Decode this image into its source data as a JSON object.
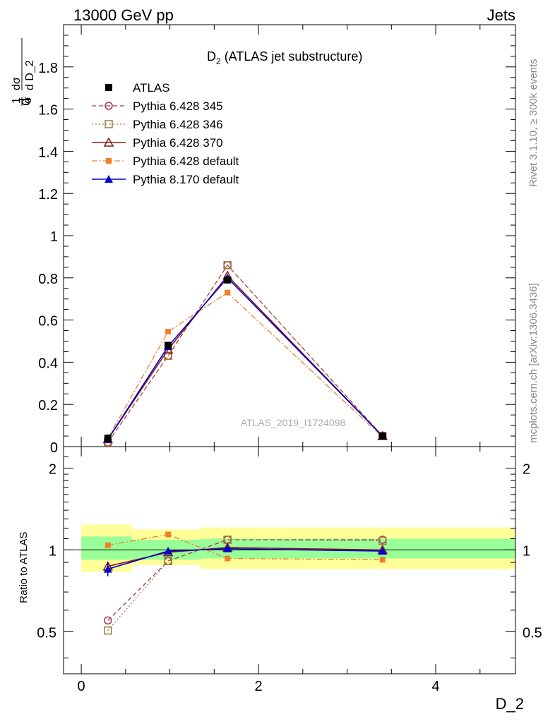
{
  "header": {
    "left": "13000 GeV pp",
    "right": "Jets"
  },
  "title": {
    "main": "D",
    "sub": "2",
    "rest": " (ATLAS jet substructure)"
  },
  "side_labels": {
    "rivet": "Rivet 3.1.10, ≥ 300k events",
    "mcplots": "mcplots.cern.ch [arXiv:1306.3436]"
  },
  "watermark": "ATLAS_2019_I1724098",
  "axes": {
    "xlabel": "D_2",
    "ylabel_upper": "d1/σ dσ/d D_2",
    "ylabel_lower": "Ratio to ATLAS"
  },
  "chart_data": [
    {
      "type": "line",
      "panel": "main",
      "x": [
        0.3,
        0.98,
        1.65,
        3.4
      ],
      "xlim": [
        -0.2,
        4.9
      ],
      "ylim": [
        0,
        2.0
      ],
      "xticks": [
        0,
        2,
        4
      ],
      "yticks": [
        0,
        0.2,
        0.4,
        0.6,
        0.8,
        1,
        1.2,
        1.4,
        1.6,
        1.8
      ],
      "ytick_labels": [
        "0",
        "0.2",
        "0.4",
        "0.6",
        "0.8",
        "1",
        "1.2",
        "1.4",
        "1.6",
        "1.8"
      ],
      "legend_position": "top-left",
      "series": [
        {
          "name": "ATLAS",
          "color": "#000000",
          "marker": "square-filled",
          "style": "none",
          "values": [
            0.04,
            0.48,
            0.79,
            0.05
          ]
        },
        {
          "name": "Pythia 6.428 345",
          "color": "#b03050",
          "marker": "circle-open",
          "style": "dashed",
          "values": [
            0.02,
            0.43,
            0.86,
            0.05
          ]
        },
        {
          "name": "Pythia 6.428 346",
          "color": "#a07a40",
          "marker": "square-open",
          "style": "dotted",
          "values": [
            0.02,
            0.43,
            0.86,
            0.05
          ]
        },
        {
          "name": "Pythia 6.428 370",
          "color": "#8b1a1a",
          "marker": "triangle-open",
          "style": "solid",
          "values": [
            0.035,
            0.46,
            0.81,
            0.05
          ]
        },
        {
          "name": "Pythia 6.428 default",
          "color": "#f07f2a",
          "marker": "square-filled-small",
          "style": "dashdot",
          "values": [
            0.04,
            0.545,
            0.73,
            0.045
          ]
        },
        {
          "name": "Pythia 8.170 default",
          "color": "#0000cc",
          "marker": "triangle-filled",
          "style": "solid",
          "values": [
            0.035,
            0.475,
            0.8,
            0.05
          ]
        }
      ]
    },
    {
      "type": "line",
      "panel": "ratio",
      "x": [
        0.3,
        0.98,
        1.65,
        3.4
      ],
      "xlim": [
        -0.2,
        4.9
      ],
      "ylim": [
        0.35,
        2.4
      ],
      "log_scale": true,
      "yticks": [
        0.5,
        1,
        2
      ],
      "ytick_labels": [
        "0.5",
        "1",
        "2"
      ],
      "xticks": [
        0,
        2,
        4
      ],
      "xtick_labels": [
        "0",
        "2",
        "4"
      ],
      "bands": {
        "yellow": [
          {
            "x0": 0.0,
            "x1": 0.57,
            "lo": 0.83,
            "hi": 1.24
          },
          {
            "x0": 0.57,
            "x1": 1.35,
            "lo": 0.88,
            "hi": 1.19
          },
          {
            "x0": 1.35,
            "x1": 4.9,
            "lo": 0.85,
            "hi": 1.21
          }
        ],
        "green": [
          {
            "x0": 0.0,
            "x1": 0.57,
            "lo": 0.92,
            "hi": 1.12
          },
          {
            "x0": 0.57,
            "x1": 1.35,
            "lo": 0.92,
            "hi": 1.09
          },
          {
            "x0": 1.35,
            "x1": 4.9,
            "lo": 0.93,
            "hi": 1.1
          }
        ],
        "green_color": "#99ff99",
        "yellow_color": "#ffff99"
      },
      "series": [
        {
          "name": "Pythia 6.428 345",
          "values": [
            0.55,
            0.91,
            1.09,
            1.09
          ]
        },
        {
          "name": "Pythia 6.428 346",
          "values": [
            0.505,
            0.91,
            1.09,
            1.08
          ]
        },
        {
          "name": "Pythia 6.428 370",
          "values": [
            0.87,
            0.98,
            1.02,
            1.0
          ]
        },
        {
          "name": "Pythia 6.428 default",
          "values": [
            1.04,
            1.14,
            0.93,
            0.92
          ]
        },
        {
          "name": "Pythia 8.170 default",
          "values": [
            0.85,
            0.99,
            1.01,
            0.99
          ]
        }
      ]
    }
  ]
}
